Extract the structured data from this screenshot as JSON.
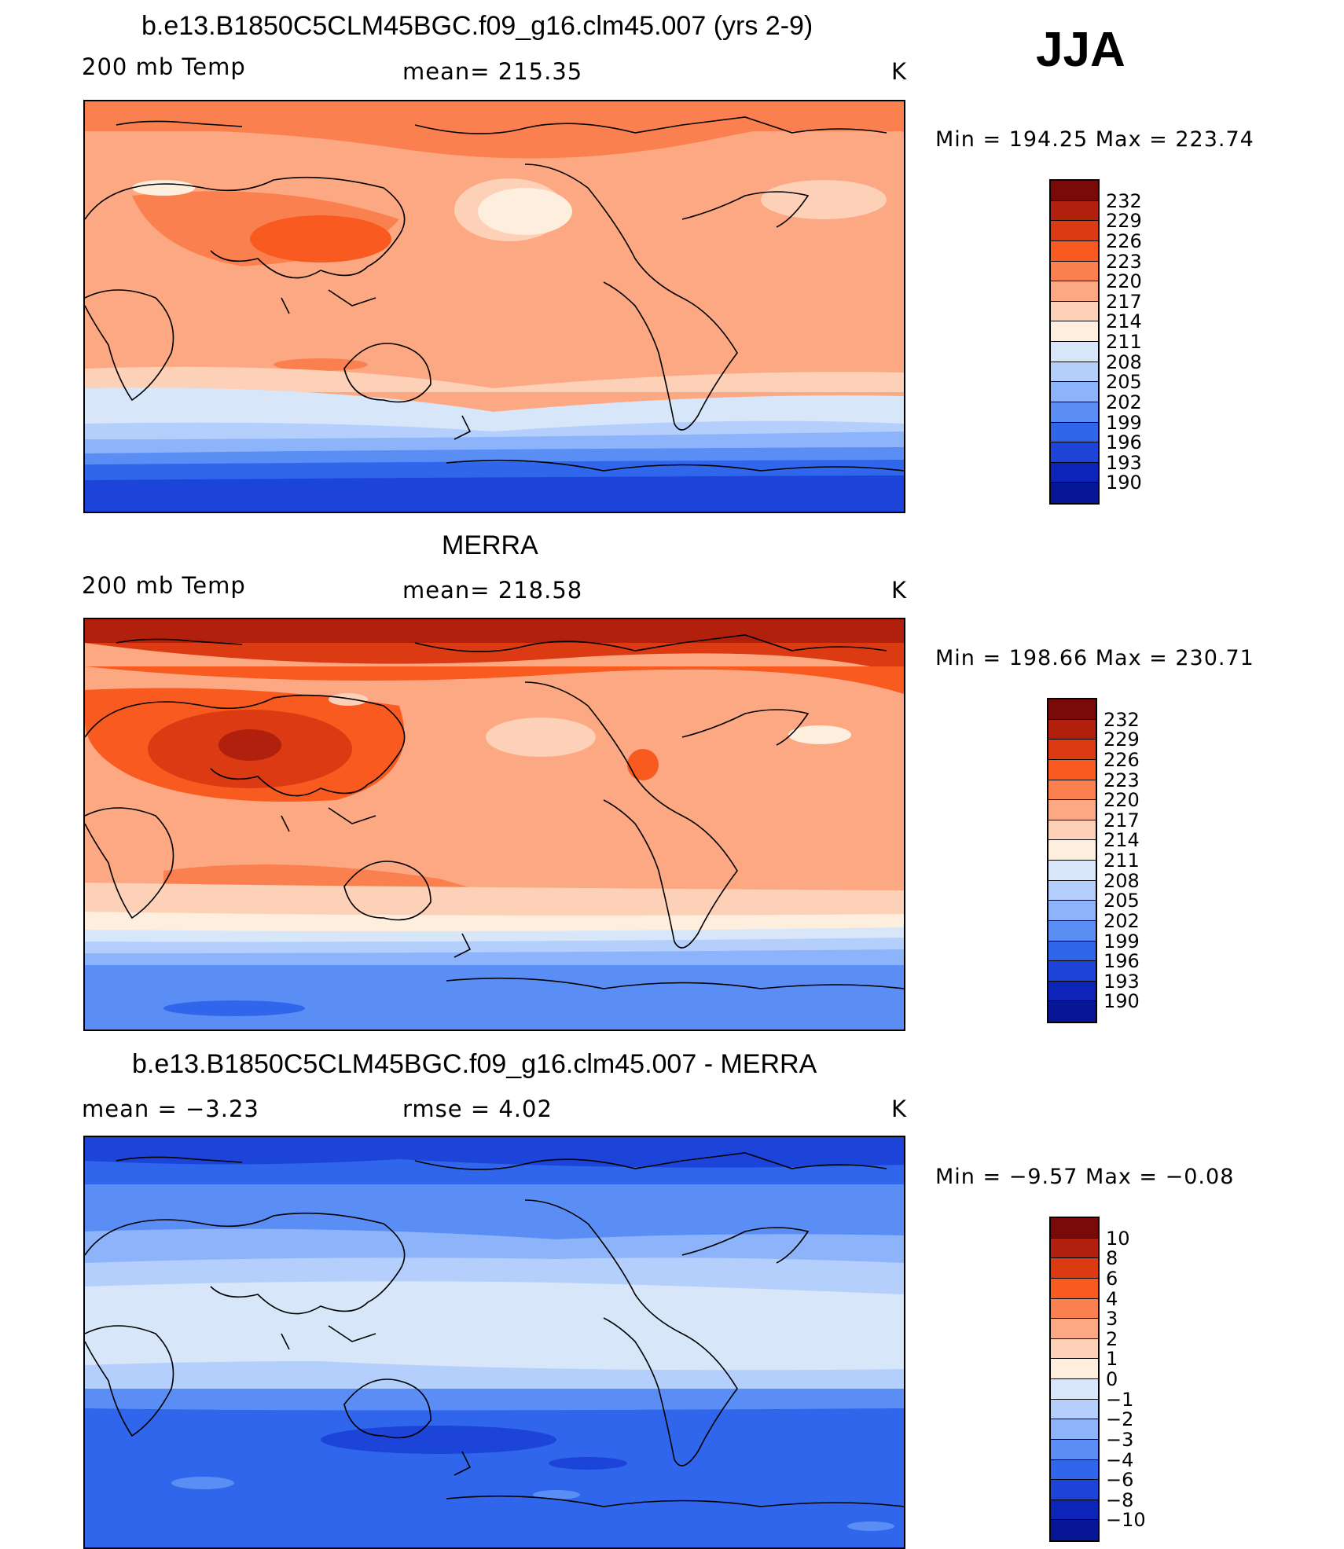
{
  "season": "JJA",
  "panels": [
    {
      "title": "b.e13.B1850C5CLM45BGC.f09_g16.clm45.007 (yrs 2-9)",
      "left_label": "200 mb Temp",
      "center_label": "mean=  215.35",
      "unit": "K",
      "minmax": "Min  =  194.25  Max  =  223.74",
      "colorbar_labels": [
        "232",
        "229",
        "226",
        "223",
        "220",
        "217",
        "214",
        "211",
        "208",
        "205",
        "202",
        "199",
        "196",
        "193",
        "190"
      ]
    },
    {
      "title": "MERRA",
      "left_label": "200 mb Temp",
      "center_label": "mean=  218.58",
      "unit": "K",
      "minmax": "Min  =  198.66  Max  =  230.71",
      "colorbar_labels": [
        "232",
        "229",
        "226",
        "223",
        "220",
        "217",
        "214",
        "211",
        "208",
        "205",
        "202",
        "199",
        "196",
        "193",
        "190"
      ]
    },
    {
      "title": "b.e13.B1850C5CLM45BGC.f09_g16.clm45.007 - MERRA",
      "left_label": "mean  =     −3.23",
      "center_label": "rmse  =     4.02",
      "unit": "K",
      "minmax": "Min  =    −9.57  Max  =    −0.08",
      "colorbar_labels": [
        "10",
        "8",
        "6",
        "4",
        "3",
        "2",
        "1",
        "0",
        "−1",
        "−2",
        "−3",
        "−4",
        "−6",
        "−8",
        "−10"
      ]
    }
  ],
  "colorbar_colors": [
    "#7a0a0a",
    "#b0200c",
    "#dc3a12",
    "#f85a20",
    "#fb8050",
    "#fca883",
    "#fdd0b8",
    "#feeedd",
    "#d8e6fa",
    "#b4cffb",
    "#8db4fa",
    "#5a8ef5",
    "#2f66ec",
    "#1d44d8",
    "#0d24b8",
    "#071696"
  ],
  "chart_data": {
    "type": "heatmap",
    "season": "JJA",
    "variable": "200 mb Temp",
    "unit": "K",
    "panels": [
      {
        "title": "b.e13.B1850C5CLM45BGC.f09_g16.clm45.007 (yrs 2-9)",
        "mean": 215.35,
        "min": 194.25,
        "max": 223.74,
        "levels": [
          190,
          193,
          196,
          199,
          202,
          205,
          208,
          211,
          214,
          217,
          220,
          223,
          226,
          229,
          232
        ]
      },
      {
        "title": "MERRA",
        "mean": 218.58,
        "min": 198.66,
        "max": 230.71,
        "levels": [
          190,
          193,
          196,
          199,
          202,
          205,
          208,
          211,
          214,
          217,
          220,
          223,
          226,
          229,
          232
        ]
      },
      {
        "title": "b.e13.B1850C5CLM45BGC.f09_g16.clm45.007 - MERRA",
        "mean": -3.23,
        "rmse": 4.02,
        "min": -9.57,
        "max": -0.08,
        "levels": [
          -10,
          -8,
          -6,
          -4,
          -3,
          -2,
          -1,
          0,
          1,
          2,
          3,
          4,
          6,
          8,
          10
        ]
      }
    ]
  }
}
